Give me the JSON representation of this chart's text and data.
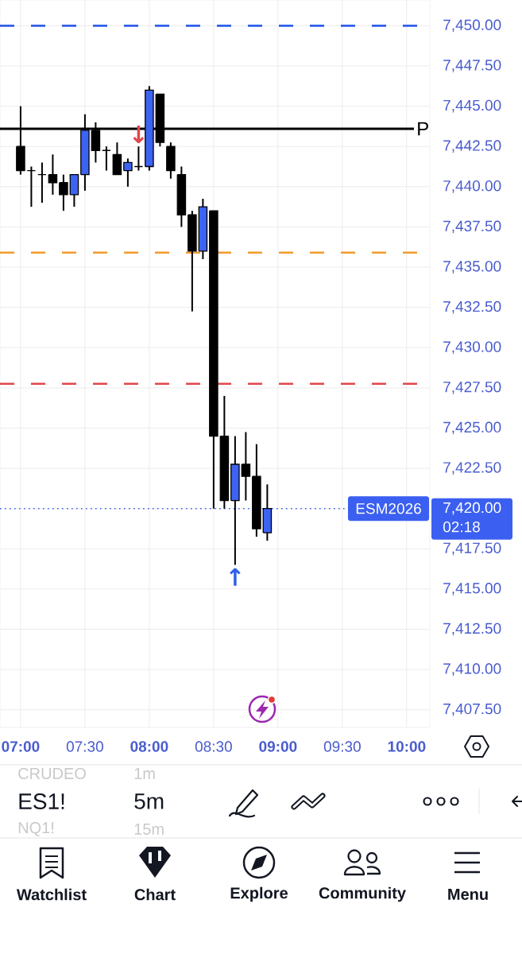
{
  "chart_data": {
    "type": "candlestick",
    "x": [
      7,
      7.0833,
      7.1667,
      7.25,
      7.3333,
      7.4167,
      7.5,
      7.5833,
      7.6667,
      7.75,
      7.8333,
      7.9167,
      8,
      8.0833,
      8.1667,
      8.25,
      8.3333,
      8.4167,
      8.5,
      8.5833,
      8.6667,
      8.75,
      8.8333,
      8.9167
    ],
    "ohlc": [
      [
        7442.5,
        7445.0,
        7440.75,
        7441.0
      ],
      [
        7441.0,
        7441.25,
        7438.75,
        7441.0
      ],
      [
        7440.75,
        7441.5,
        7439.0,
        7440.75
      ],
      [
        7440.75,
        7442.0,
        7439.5,
        7440.25
      ],
      [
        7440.25,
        7440.75,
        7438.5,
        7439.5
      ],
      [
        7439.5,
        7440.75,
        7438.75,
        7440.75
      ],
      [
        7440.75,
        7444.5,
        7439.75,
        7443.5
      ],
      [
        7443.5,
        7444.0,
        7441.5,
        7442.25
      ],
      [
        7442.25,
        7442.5,
        7441.0,
        7442.25
      ],
      [
        7442.0,
        7442.75,
        7440.75,
        7440.75
      ],
      [
        7441.0,
        7441.75,
        7440.0,
        7441.5
      ],
      [
        7441.25,
        7442.5,
        7441.0,
        7441.25
      ],
      [
        7441.25,
        7446.25,
        7441.0,
        7446.0
      ],
      [
        7445.75,
        7445.75,
        7442.5,
        7442.75
      ],
      [
        7442.5,
        7442.75,
        7440.5,
        7441.0
      ],
      [
        7440.75,
        7441.25,
        7437.5,
        7438.25
      ],
      [
        7438.25,
        7438.5,
        7432.25,
        7436.0
      ],
      [
        7436.0,
        7439.25,
        7435.5,
        7438.75
      ],
      [
        7438.5,
        7438.5,
        7420.0,
        7424.5
      ],
      [
        7424.5,
        7427.0,
        7420.0,
        7420.5
      ],
      [
        7420.5,
        7424.5,
        7416.5,
        7422.75
      ],
      [
        7422.75,
        7424.75,
        7420.5,
        7422.0
      ],
      [
        7422.0,
        7424.0,
        7418.25,
        7418.75
      ],
      [
        7418.5,
        7421.5,
        7418.0,
        7420.0
      ]
    ],
    "colors": [
      "#000000",
      "#000000",
      "#000000",
      "#000000",
      "#000000",
      "#3d63f2",
      "#3d63f2",
      "#000000",
      "#000000",
      "#000000",
      "#3d63f2",
      "#000000",
      "#3d63f2",
      "#000000",
      "#000000",
      "#000000",
      "#000000",
      "#3d63f2",
      "#000000",
      "#000000",
      "#3d63f2",
      "#000000",
      "#000000",
      "#3d63f2"
    ],
    "xlim": [
      6.84,
      10.18
    ],
    "xticks": [
      {
        "value": 7,
        "label": "07:00"
      },
      {
        "value": 7.5,
        "label": "07:30"
      },
      {
        "value": 8,
        "label": "08:00"
      },
      {
        "value": 8.5,
        "label": "08:30"
      },
      {
        "value": 9,
        "label": "09:00"
      },
      {
        "value": 9.5,
        "label": "09:30"
      },
      {
        "value": 10,
        "label": "10:00"
      }
    ],
    "ylim": [
      7406.4,
      7451.6
    ],
    "yticks": [
      {
        "value": 7407.5,
        "label": "7,407.50"
      },
      {
        "value": 7410,
        "label": "7,410.00"
      },
      {
        "value": 7412.5,
        "label": "7,412.50"
      },
      {
        "value": 7415,
        "label": "7,415.00"
      },
      {
        "value": 7417.5,
        "label": "7,417.50"
      },
      {
        "value": 7420,
        "label": "7,420.00"
      },
      {
        "value": 7422.5,
        "label": "7,422.50"
      },
      {
        "value": 7425,
        "label": "7,425.00"
      },
      {
        "value": 7427.5,
        "label": "7,427.50"
      },
      {
        "value": 7430,
        "label": "7,430.00"
      },
      {
        "value": 7432.5,
        "label": "7,432.50"
      },
      {
        "value": 7435,
        "label": "7,435.00"
      },
      {
        "value": 7437.5,
        "label": "7,437.50"
      },
      {
        "value": 7440,
        "label": "7,440.00"
      },
      {
        "value": 7442.5,
        "label": "7,442.50"
      },
      {
        "value": 7445,
        "label": "7,445.00"
      },
      {
        "value": 7447.5,
        "label": "7,447.50"
      },
      {
        "value": 7450,
        "label": "7,450.00"
      }
    ],
    "grid": true,
    "ref_lines": [
      {
        "axis": "y",
        "value": 7450,
        "color": "#2f5fec",
        "line_style": "dashed"
      },
      {
        "axis": "y",
        "value": 7443.6,
        "label": "P",
        "color": "#000000",
        "line_style": "solid"
      },
      {
        "axis": "y",
        "value": 7435.9,
        "color": "#f29b2c",
        "line_style": "dashed"
      },
      {
        "axis": "y",
        "value": 7427.75,
        "color": "#e2474b",
        "line_style": "dashed"
      },
      {
        "axis": "y",
        "value": 7420,
        "label": "ESM2026",
        "color": "#3b5ff0",
        "line_style": "dotted"
      }
    ],
    "annotations": [
      {
        "text": "↓",
        "x": 7.9167,
        "y": 7442.5
      },
      {
        "text": "↑",
        "x": 8.6667,
        "y": 7416.5
      },
      "02:18",
      "CRUDEO",
      "1m",
      "ES1!",
      "5m",
      "NQ1!",
      "15m",
      "Watchlist",
      "Chart",
      "Explore",
      "Community",
      "Menu"
    ]
  }
}
